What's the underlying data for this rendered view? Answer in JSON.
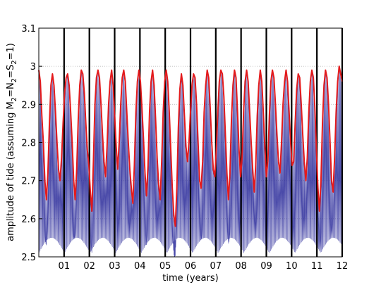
{
  "chart_data": {
    "type": "line",
    "xlabel": "time (years)",
    "ylabel_parts": [
      "amplitude of tide (assuming M",
      "2",
      "=N",
      "2",
      "=S",
      "2",
      "=1)"
    ],
    "xlim": [
      0,
      12
    ],
    "ylim": [
      2.5,
      3.1
    ],
    "x_ticks": [
      {
        "value": 1,
        "label": "01"
      },
      {
        "value": 2,
        "label": "02"
      },
      {
        "value": 3,
        "label": "03"
      },
      {
        "value": 4,
        "label": "04"
      },
      {
        "value": 5,
        "label": "05"
      },
      {
        "value": 6,
        "label": "06"
      },
      {
        "value": 7,
        "label": "07"
      },
      {
        "value": 8,
        "label": "08"
      },
      {
        "value": 9,
        "label": "09"
      },
      {
        "value": 10,
        "label": "10"
      },
      {
        "value": 11,
        "label": "11"
      },
      {
        "value": 12,
        "label": "12"
      }
    ],
    "y_ticks": [
      {
        "value": 2.5,
        "label": "2.5"
      },
      {
        "value": 2.6,
        "label": "2.6"
      },
      {
        "value": 2.7,
        "label": "2.7"
      },
      {
        "value": 2.8,
        "label": "2.8"
      },
      {
        "value": 2.9,
        "label": "2.9"
      },
      {
        "value": 3.0,
        "label": "3"
      },
      {
        "value": 3.1,
        "label": "3.1"
      }
    ],
    "year_markers": [
      1,
      2,
      3,
      4,
      5,
      6,
      7,
      8,
      9,
      10,
      11,
      12
    ],
    "grid": true,
    "colors": {
      "envelope": "#e41a1c",
      "oscillation": "#2a2a9a",
      "year_marker": "#000000",
      "grid": "#bdbdbd"
    },
    "series": [
      {
        "key": "envelope",
        "x": [
          0.0,
          0.06,
          0.12,
          0.18,
          0.24,
          0.3,
          0.36,
          0.42,
          0.48,
          0.54,
          0.6,
          0.66,
          0.72,
          0.78,
          0.84,
          0.9,
          0.96,
          1.02,
          1.08,
          1.14,
          1.2,
          1.26,
          1.32,
          1.38,
          1.44,
          1.5,
          1.56,
          1.62,
          1.68,
          1.74,
          1.8,
          1.86,
          1.92,
          1.98,
          2.04,
          2.1,
          2.16,
          2.22,
          2.28,
          2.34,
          2.4,
          2.46,
          2.52,
          2.58,
          2.64,
          2.7,
          2.76,
          2.82,
          2.88,
          2.94,
          3.0,
          3.06,
          3.12,
          3.18,
          3.24,
          3.3,
          3.36,
          3.42,
          3.48,
          3.54,
          3.6,
          3.66,
          3.72,
          3.78,
          3.84,
          3.9,
          3.96,
          4.02,
          4.08,
          4.14,
          4.2,
          4.26,
          4.32,
          4.38,
          4.44,
          4.5,
          4.56,
          4.62,
          4.68,
          4.74,
          4.8,
          4.86,
          4.92,
          4.98,
          5.04,
          5.1,
          5.16,
          5.22,
          5.28,
          5.34,
          5.4,
          5.46,
          5.52,
          5.58,
          5.64,
          5.7,
          5.76,
          5.82,
          5.88,
          5.94,
          6.0,
          6.06,
          6.12,
          6.18,
          6.24,
          6.3,
          6.36,
          6.42,
          6.48,
          6.54,
          6.6,
          6.66,
          6.72,
          6.78,
          6.84,
          6.9,
          6.96,
          7.02,
          7.08,
          7.14,
          7.2,
          7.26,
          7.32,
          7.38,
          7.44,
          7.5,
          7.56,
          7.62,
          7.68,
          7.74,
          7.8,
          7.86,
          7.92,
          7.98,
          8.04,
          8.1,
          8.16,
          8.22,
          8.28,
          8.34,
          8.4,
          8.46,
          8.52,
          8.58,
          8.64,
          8.7,
          8.76,
          8.82,
          8.88,
          8.94,
          9.0,
          9.06,
          9.12,
          9.18,
          9.24,
          9.3,
          9.36,
          9.42,
          9.48,
          9.54,
          9.6,
          9.66,
          9.72,
          9.78,
          9.84,
          9.9,
          9.96,
          10.02,
          10.08,
          10.14,
          10.2,
          10.26,
          10.32,
          10.38,
          10.44,
          10.5,
          10.56,
          10.62,
          10.68,
          10.74,
          10.8,
          10.86,
          10.92,
          10.98,
          11.04,
          11.1,
          11.16,
          11.22,
          11.28,
          11.34,
          11.4,
          11.46,
          11.52,
          11.58,
          11.64,
          11.7,
          11.76,
          11.82,
          11.88,
          11.94,
          12.0
        ],
        "y": [
          2.99,
          2.96,
          2.87,
          2.8,
          2.7,
          2.65,
          2.72,
          2.85,
          2.95,
          2.98,
          2.95,
          2.88,
          2.8,
          2.73,
          2.7,
          2.76,
          2.85,
          2.93,
          2.97,
          2.98,
          2.95,
          2.88,
          2.8,
          2.7,
          2.65,
          2.73,
          2.86,
          2.95,
          2.99,
          2.98,
          2.93,
          2.85,
          2.78,
          2.74,
          2.67,
          2.62,
          2.75,
          2.9,
          2.97,
          2.99,
          2.97,
          2.9,
          2.82,
          2.75,
          2.71,
          2.79,
          2.9,
          2.96,
          2.99,
          2.95,
          2.87,
          2.79,
          2.73,
          2.8,
          2.9,
          2.97,
          2.99,
          2.96,
          2.88,
          2.8,
          2.73,
          2.68,
          2.64,
          2.74,
          2.88,
          2.96,
          2.99,
          2.96,
          2.89,
          2.81,
          2.72,
          2.66,
          2.74,
          2.88,
          2.96,
          2.99,
          2.95,
          2.86,
          2.76,
          2.69,
          2.65,
          2.75,
          2.88,
          2.96,
          2.99,
          2.96,
          2.88,
          2.78,
          2.68,
          2.61,
          2.58,
          2.68,
          2.84,
          2.94,
          2.98,
          2.95,
          2.87,
          2.79,
          2.75,
          2.8,
          2.88,
          2.95,
          2.98,
          2.97,
          2.9,
          2.8,
          2.7,
          2.68,
          2.75,
          2.88,
          2.95,
          2.99,
          2.97,
          2.89,
          2.8,
          2.73,
          2.71,
          2.78,
          2.88,
          2.96,
          2.99,
          2.98,
          2.92,
          2.82,
          2.72,
          2.65,
          2.72,
          2.86,
          2.95,
          2.99,
          2.97,
          2.88,
          2.78,
          2.71,
          2.76,
          2.88,
          2.96,
          2.99,
          2.96,
          2.88,
          2.8,
          2.73,
          2.67,
          2.74,
          2.87,
          2.95,
          2.99,
          2.96,
          2.88,
          2.79,
          2.71,
          2.75,
          2.87,
          2.96,
          2.99,
          2.97,
          2.9,
          2.82,
          2.75,
          2.72,
          2.8,
          2.9,
          2.96,
          2.99,
          2.96,
          2.88,
          2.8,
          2.74,
          2.75,
          2.85,
          2.94,
          2.98,
          2.97,
          2.9,
          2.82,
          2.75,
          2.7,
          2.76,
          2.88,
          2.96,
          2.99,
          2.97,
          2.89,
          2.78,
          2.68,
          2.62,
          2.7,
          2.85,
          2.95,
          2.99,
          2.97,
          2.9,
          2.8,
          2.7,
          2.67,
          2.76,
          2.88,
          2.96,
          3.0,
          2.98,
          2.96
        ]
      }
    ]
  }
}
